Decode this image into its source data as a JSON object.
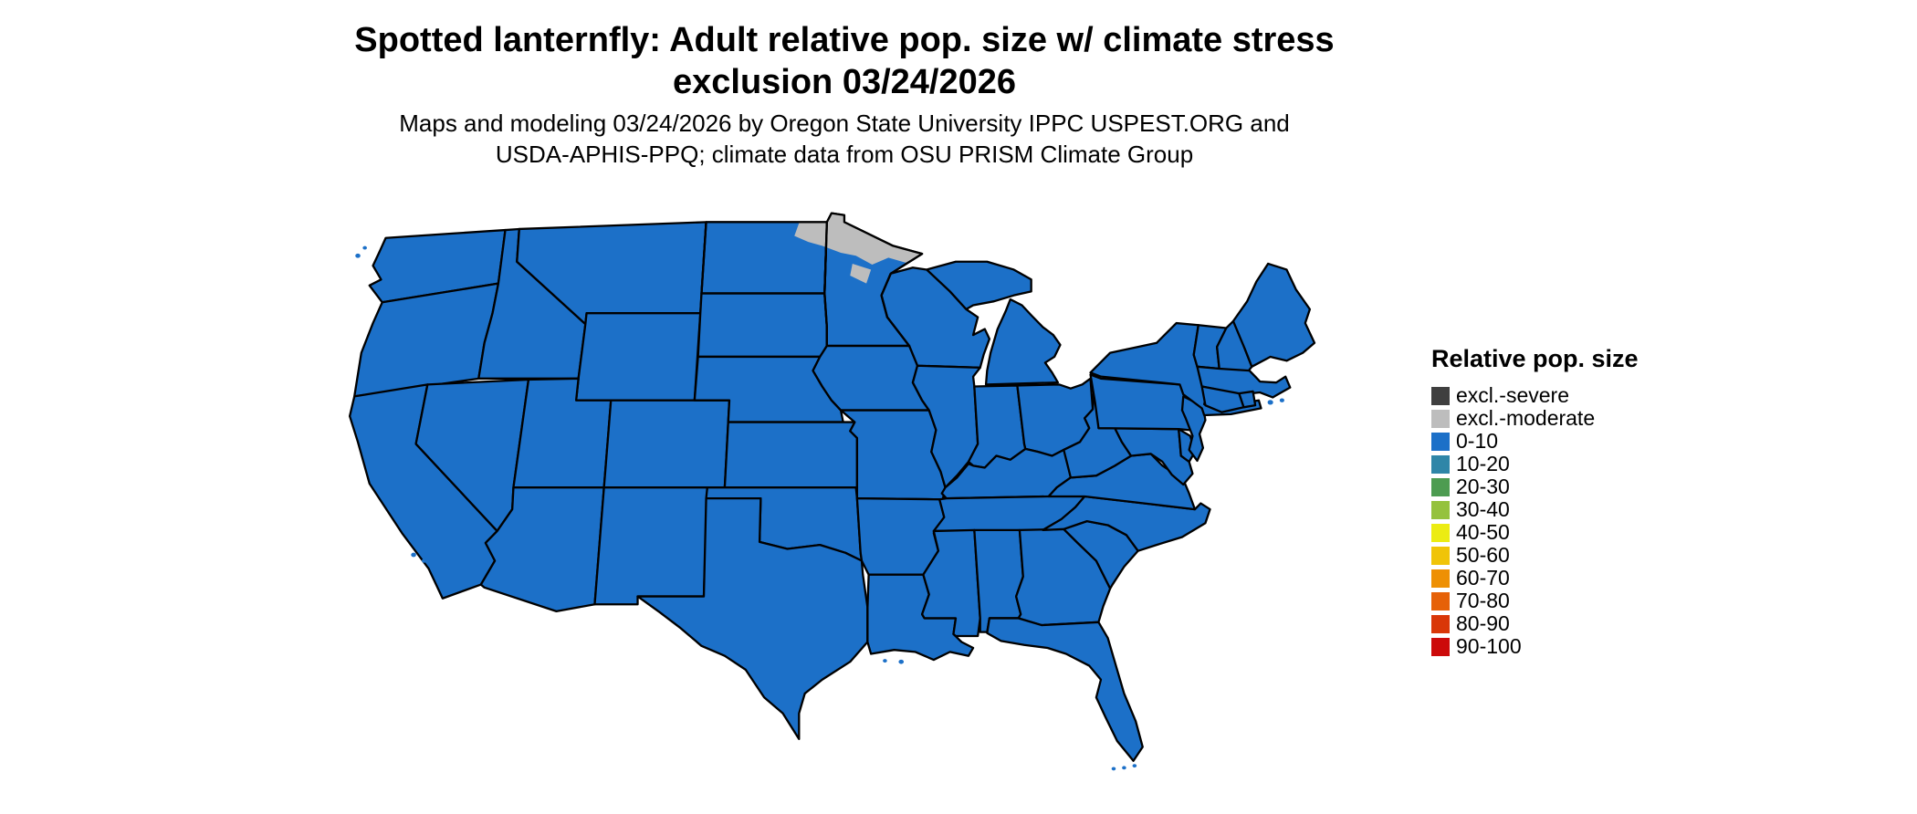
{
  "title": {
    "line1": "Spotted lanternfly: Adult relative pop. size w/ climate stress",
    "line2": "exclusion 03/24/2026"
  },
  "subtitle": {
    "line1": "Maps and modeling 03/24/2026 by Oregon State University IPPC USPEST.ORG and",
    "line2": "USDA-APHIS-PPQ; climate data from OSU PRISM Climate Group"
  },
  "legend": {
    "title": "Relative pop. size",
    "items": [
      {
        "label": "excl.-severe",
        "color": "#3f3f3f"
      },
      {
        "label": "excl.-moderate",
        "color": "#bdbdbd"
      },
      {
        "label": "0-10",
        "color": "#1c70c8"
      },
      {
        "label": "10-20",
        "color": "#2f86a8"
      },
      {
        "label": "20-30",
        "color": "#4d9c51"
      },
      {
        "label": "30-40",
        "color": "#95c23d"
      },
      {
        "label": "40-50",
        "color": "#ecec13"
      },
      {
        "label": "50-60",
        "color": "#f0c408"
      },
      {
        "label": "60-70",
        "color": "#ee9004"
      },
      {
        "label": "70-80",
        "color": "#e66108"
      },
      {
        "label": "80-90",
        "color": "#d93708"
      },
      {
        "label": "90-100",
        "color": "#cc0a0a"
      }
    ]
  },
  "map": {
    "land_fill": "#1c70c8",
    "exclusion_moderate_fill": "#bdbdbd",
    "border_color": "#000000",
    "background": "#ffffff"
  }
}
